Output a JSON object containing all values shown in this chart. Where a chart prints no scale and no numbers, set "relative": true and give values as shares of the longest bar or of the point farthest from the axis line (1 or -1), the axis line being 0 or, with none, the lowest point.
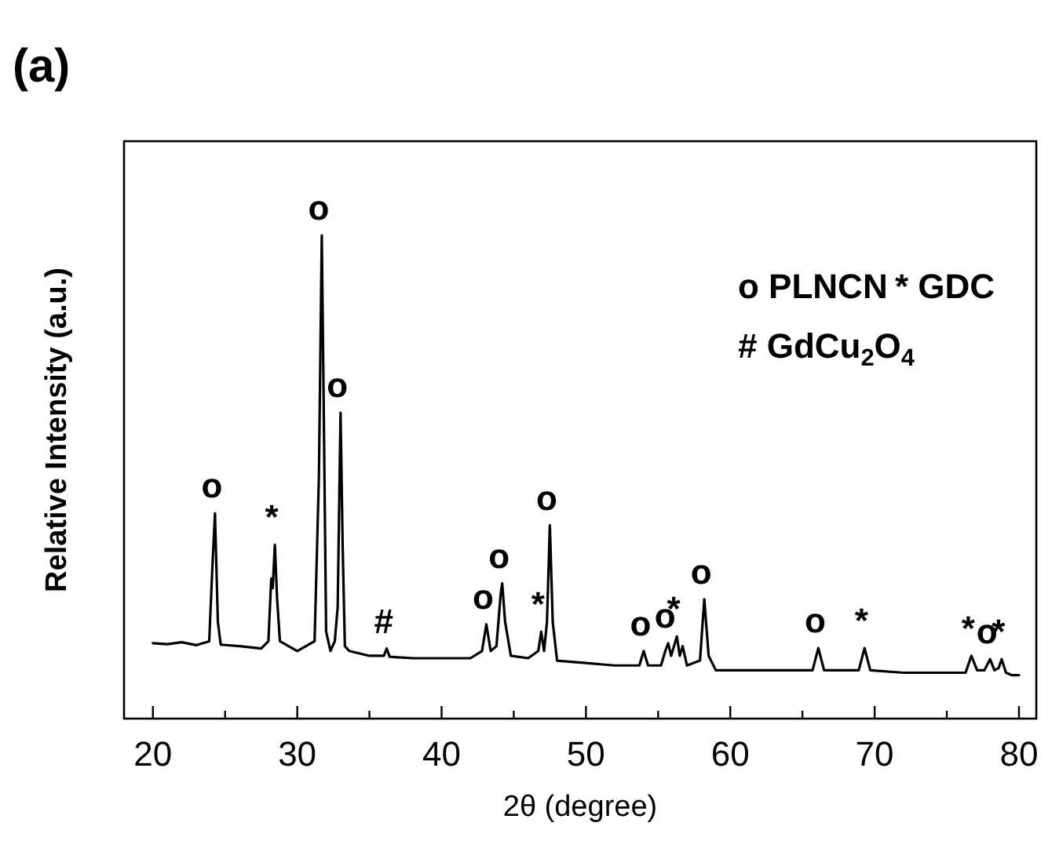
{
  "chart_data": {
    "type": "line",
    "title": "(a)",
    "xlabel": "2θ (degree)",
    "ylabel": "Relative Intensity (a.u.)",
    "relative": true,
    "xlim": [
      18,
      81.2
    ],
    "xticks": [
      20,
      {
        "value": 25,
        "label": null
      },
      30,
      {
        "value": 35,
        "label": null
      },
      40,
      {
        "value": 45,
        "label": null
      },
      50,
      {
        "value": 55,
        "label": null
      },
      60,
      {
        "value": 65,
        "label": null
      },
      70,
      {
        "value": 75,
        "label": null
      },
      80
    ],
    "series": [
      {
        "color": "#000000",
        "x": [
          20,
          21,
          22,
          23,
          23.9,
          24.1,
          24.3,
          24.5,
          24.7,
          26,
          27.5,
          28.0,
          28.2,
          28.3,
          28.45,
          28.6,
          28.8,
          30,
          31.2,
          31.5,
          31.7,
          31.85,
          32.0,
          32.3,
          32.6,
          32.8,
          33.0,
          33.15,
          33.3,
          33.6,
          35,
          36.0,
          36.2,
          36.4,
          38,
          40,
          42,
          42.8,
          43.1,
          43.4,
          43.8,
          44.1,
          44.2,
          44.4,
          44.8,
          46,
          46.7,
          46.9,
          47.1,
          47.3,
          47.5,
          47.7,
          48,
          50,
          52,
          53.7,
          54.0,
          54.3,
          55.2,
          55.5,
          55.7,
          55.9,
          56.1,
          56.3,
          56.5,
          56.7,
          57,
          57.9,
          58.2,
          58.5,
          59,
          61,
          63,
          65.7,
          66.1,
          66.5,
          68.9,
          69.3,
          69.7,
          72,
          74,
          76.3,
          76.7,
          77.1,
          77.6,
          78.0,
          78.3,
          78.6,
          78.8,
          79.1,
          79.5,
          80
        ],
        "values": [
          0.156,
          0.154,
          0.158,
          0.152,
          0.16,
          0.3,
          0.425,
          0.2,
          0.153,
          0.15,
          0.145,
          0.16,
          0.29,
          0.27,
          0.36,
          0.25,
          0.16,
          0.14,
          0.16,
          0.5,
          1.0,
          0.6,
          0.18,
          0.14,
          0.16,
          0.23,
          0.633,
          0.35,
          0.15,
          0.14,
          0.13,
          0.13,
          0.145,
          0.128,
          0.125,
          0.125,
          0.125,
          0.14,
          0.195,
          0.14,
          0.15,
          0.26,
          0.28,
          0.2,
          0.13,
          0.125,
          0.14,
          0.18,
          0.14,
          0.2,
          0.4,
          0.2,
          0.12,
          0.115,
          0.11,
          0.11,
          0.14,
          0.11,
          0.11,
          0.14,
          0.156,
          0.13,
          0.15,
          0.17,
          0.13,
          0.15,
          0.11,
          0.12,
          0.247,
          0.13,
          0.1,
          0.1,
          0.1,
          0.1,
          0.146,
          0.1,
          0.1,
          0.146,
          0.1,
          0.095,
          0.095,
          0.095,
          0.13,
          0.1,
          0.1,
          0.123,
          0.1,
          0.105,
          0.123,
          0.095,
          0.09,
          0.09
        ]
      }
    ],
    "annotations": [
      {
        "text": "o",
        "x": 24.3,
        "y": 0.425
      },
      {
        "text": "*",
        "x": 28.45,
        "y": 0.36
      },
      {
        "text": "o",
        "x": 31.7,
        "y": 1.0
      },
      {
        "text": "o",
        "x": 33.0,
        "y": 0.633
      },
      {
        "text": "#",
        "x": 36.2,
        "y": 0.145
      },
      {
        "text": "o",
        "x": 43.1,
        "y": 0.195
      },
      {
        "text": "o",
        "x": 44.2,
        "y": 0.28
      },
      {
        "text": "*",
        "x": 46.9,
        "y": 0.18
      },
      {
        "text": "o",
        "x": 47.5,
        "y": 0.4
      },
      {
        "text": "o",
        "x": 54.0,
        "y": 0.14
      },
      {
        "text": "o",
        "x": 55.7,
        "y": 0.156
      },
      {
        "text": "*",
        "x": 56.3,
        "y": 0.17
      },
      {
        "text": "o",
        "x": 58.2,
        "y": 0.247
      },
      {
        "text": "o",
        "x": 66.1,
        "y": 0.146
      },
      {
        "text": "*",
        "x": 69.3,
        "y": 0.146
      },
      {
        "text": "*",
        "x": 76.7,
        "y": 0.13
      },
      {
        "text": "o",
        "x": 78.0,
        "y": 0.123
      },
      {
        "text": "*",
        "x": 78.8,
        "y": 0.123
      },
      "o PLNCN",
      "* GDC",
      "# GdCu$_{2}$O$_{4}$"
    ]
  }
}
